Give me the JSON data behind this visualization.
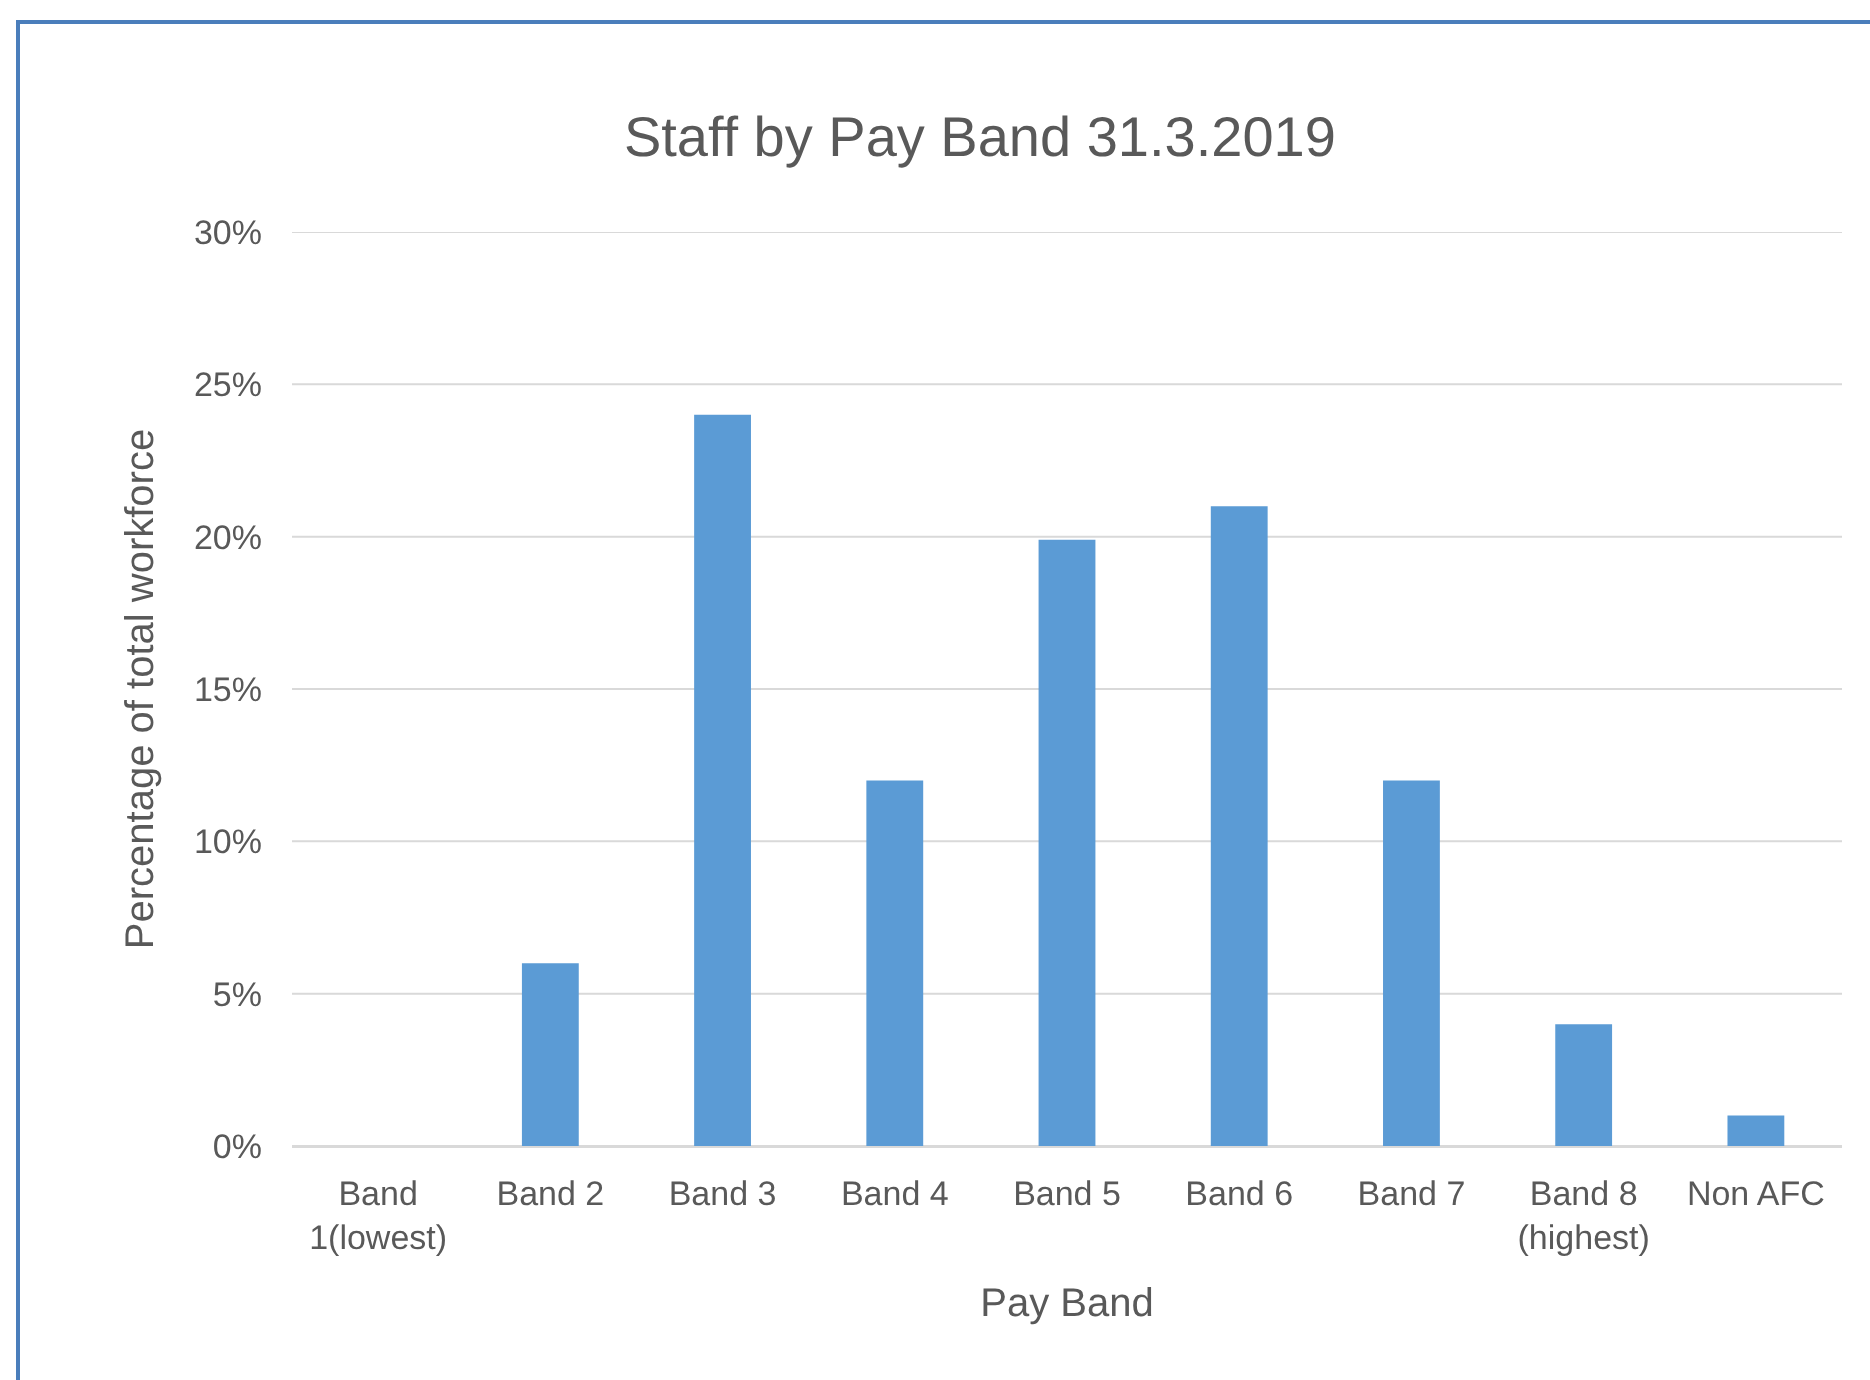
{
  "chart_data": {
    "type": "bar",
    "title": "Staff by Pay Band 31.3.2019",
    "xlabel": "Pay Band",
    "ylabel": "Percentage of total workforce",
    "categories": [
      "Band 1(lowest)",
      "Band 2",
      "Band 3",
      "Band 4",
      "Band 5",
      "Band 6",
      "Band 7",
      "Band 8 (highest)",
      "Non AFC"
    ],
    "values": [
      0,
      6,
      24,
      12,
      19.9,
      21,
      12,
      4,
      1
    ],
    "color": "#5b9bd5",
    "ylim": [
      0,
      30
    ],
    "yticks": [
      {
        "value": 0,
        "label": "0%"
      },
      {
        "value": 5,
        "label": "5%"
      },
      {
        "value": 10,
        "label": "10%"
      },
      {
        "value": 15,
        "label": "15%"
      },
      {
        "value": 20,
        "label": "20%"
      },
      {
        "value": 25,
        "label": "25%"
      },
      {
        "value": 30,
        "label": "30%"
      }
    ],
    "grid": "y"
  }
}
